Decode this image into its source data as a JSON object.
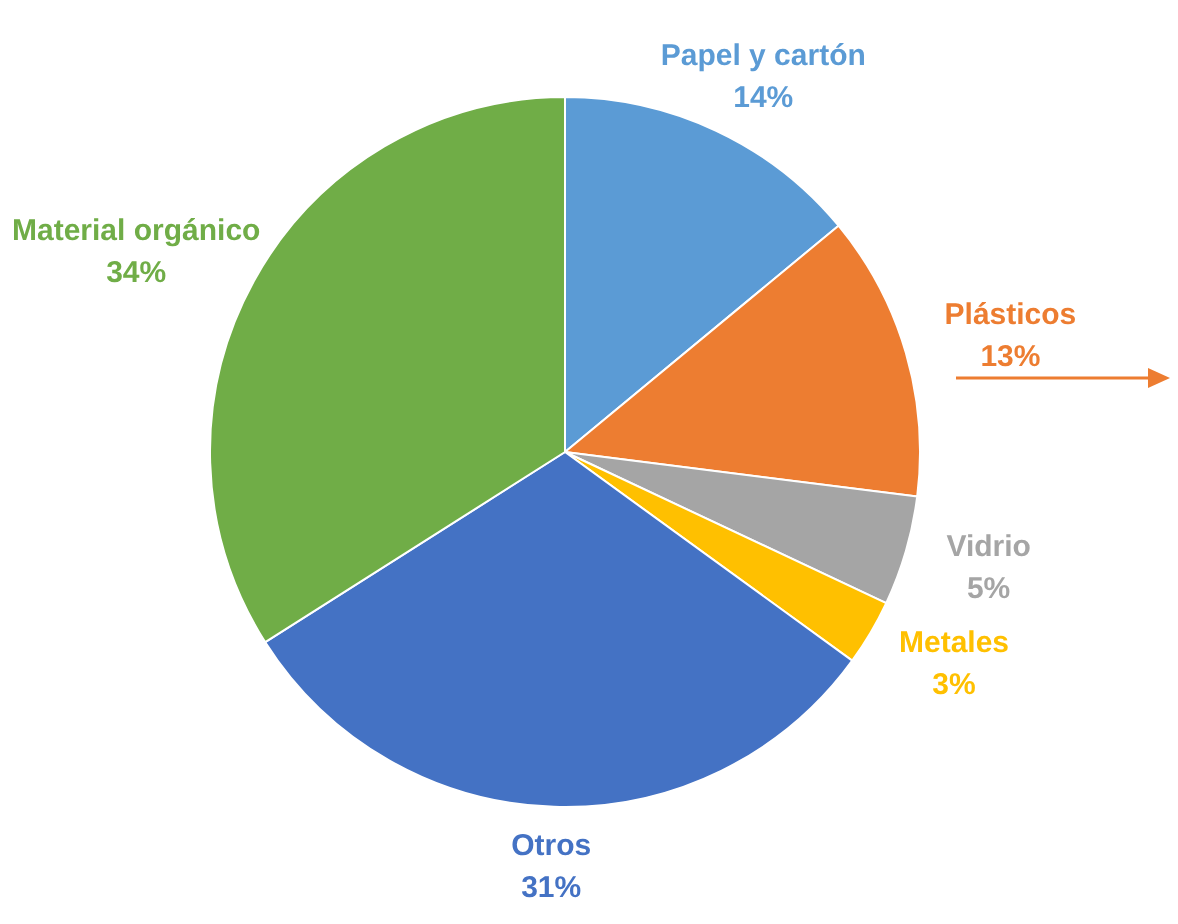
{
  "chart_data": {
    "type": "pie",
    "categories": [
      "Papel y cartón",
      "Plásticos",
      "Vidrio",
      "Metales",
      "Otros",
      "Material orgánico"
    ],
    "values": [
      14,
      13,
      5,
      3,
      31,
      34
    ],
    "value_labels": [
      "14%",
      "13%",
      "5%",
      "3%",
      "31%",
      "34%"
    ],
    "colors": [
      "#5b9bd5",
      "#ed7d31",
      "#a5a5a5",
      "#ffc000",
      "#4472c4",
      "#70ad47"
    ],
    "legend": false
  }
}
